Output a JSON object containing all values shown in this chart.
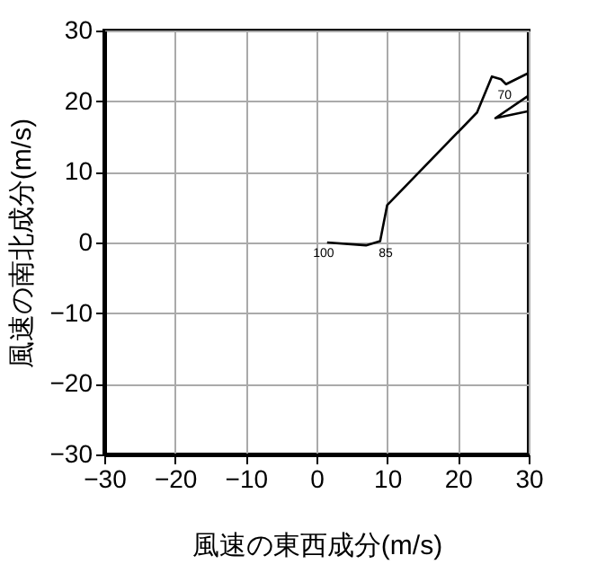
{
  "chart_data": {
    "type": "line",
    "xlabel": "風速の東西成分(m/s)",
    "ylabel": "風速の南北成分(m/s)",
    "xlim": [
      -30,
      30
    ],
    "ylim": [
      -30,
      30
    ],
    "xticks": [
      -30,
      -20,
      -10,
      0,
      10,
      20,
      30
    ],
    "yticks": [
      -30,
      -20,
      -10,
      0,
      10,
      20,
      30
    ],
    "grid": true,
    "series": [
      {
        "color": "#000000",
        "x": [
          1.5,
          7.0,
          9.0,
          10.0,
          22.7,
          24.8,
          26.1,
          26.8,
          30,
          null,
          30,
          25.3,
          30
        ],
        "values": [
          0,
          -0.4,
          0.2,
          5.3,
          18.4,
          23.5,
          23.1,
          22.4,
          24.0,
          null,
          20.8,
          17.6,
          18.6
        ]
      }
    ],
    "annotations": [
      {
        "text": "100",
        "x": 1.0,
        "y": 0
      },
      {
        "text": "85",
        "x": 9.8,
        "y": 0
      },
      {
        "text": "70",
        "x": 26.6,
        "y": 22.4
      }
    ]
  }
}
